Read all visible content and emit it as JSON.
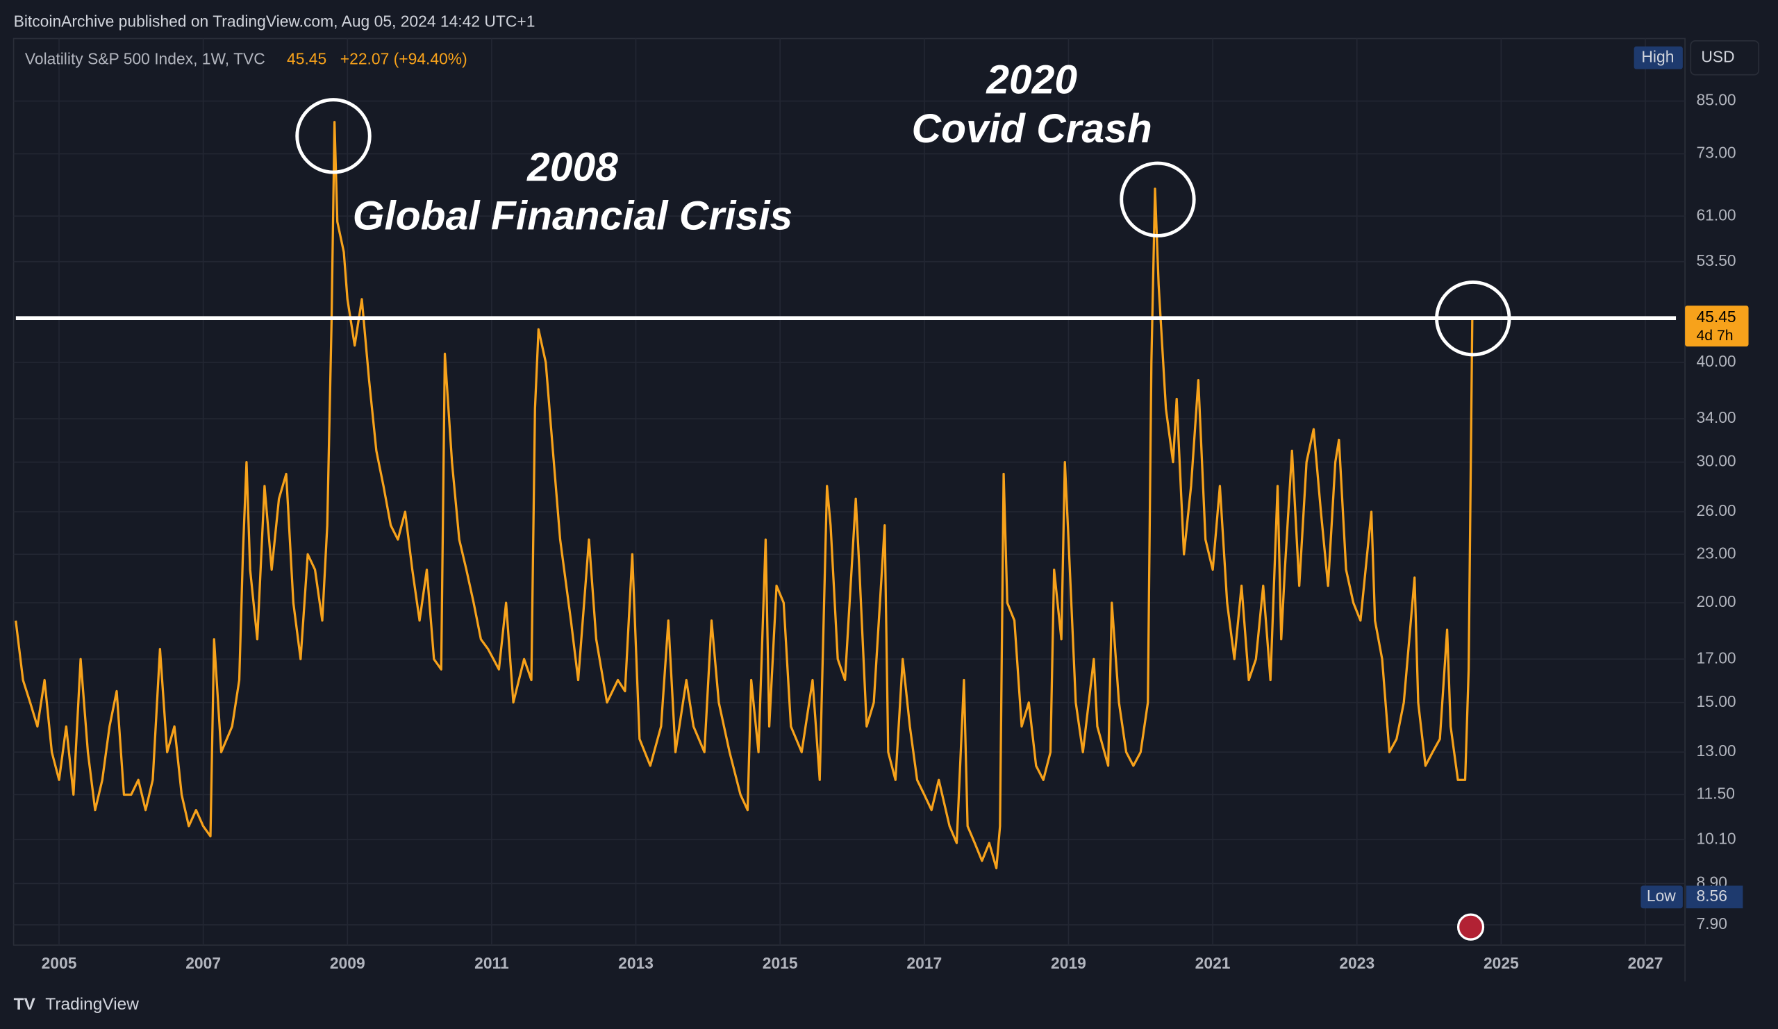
{
  "header": "BitcoinArchive published on TradingView.com, Aug 05, 2024 14:42 UTC+1",
  "footer": "TradingView",
  "chart_data": {
    "type": "line",
    "title": "Volatility S&P 500 Index, 1W, TVC",
    "last_value": 45.45,
    "change": "+22.07 (+94.40%)",
    "high_label": "High",
    "currency": "USD",
    "low_label": "Low",
    "low_value": 8.56,
    "countdown": "4d 7h",
    "log_scale": true,
    "grid": true,
    "annotations": [
      {
        "year": "2008",
        "text": "Global Financial Crisis"
      },
      {
        "year": "2020",
        "text": "Covid Crash"
      }
    ],
    "xlim": [
      2004.37,
      2027.55
    ],
    "xticks": [
      2005,
      2007,
      2009,
      2011,
      2013,
      2015,
      2017,
      2019,
      2021,
      2023,
      2025,
      2027
    ],
    "ylim": [
      7.45,
      101.8
    ],
    "yticks": [
      {
        "value": 7.9,
        "label": "7.90"
      },
      {
        "value": 8.9,
        "label": "8.90"
      },
      {
        "value": 10.1,
        "label": "10.10"
      },
      {
        "value": 11.5,
        "label": "11.50"
      },
      {
        "value": 13,
        "label": "13.00"
      },
      {
        "value": 15,
        "label": "15.00"
      },
      {
        "value": 17,
        "label": "17.00"
      },
      {
        "value": 20,
        "label": "20.00"
      },
      {
        "value": 23,
        "label": "23.00"
      },
      {
        "value": 26,
        "label": "26.00"
      },
      {
        "value": 30,
        "label": "30.00"
      },
      {
        "value": 34,
        "label": "34.00"
      },
      {
        "value": 40,
        "label": "40.00"
      },
      {
        "value": 53.5,
        "label": "53.50"
      },
      {
        "value": 61,
        "label": "61.00"
      },
      {
        "value": 73,
        "label": "73.00"
      },
      {
        "value": 85,
        "label": "85.00"
      }
    ],
    "x": [
      2004.4,
      2004.5,
      2004.6,
      2004.7,
      2004.8,
      2004.9,
      2005.0,
      2005.1,
      2005.2,
      2005.3,
      2005.4,
      2005.5,
      2005.6,
      2005.7,
      2005.8,
      2005.9,
      2006.0,
      2006.1,
      2006.2,
      2006.3,
      2006.4,
      2006.5,
      2006.6,
      2006.7,
      2006.8,
      2006.9,
      2007.0,
      2007.1,
      2007.15,
      2007.25,
      2007.4,
      2007.5,
      2007.55,
      2007.6,
      2007.65,
      2007.75,
      2007.85,
      2007.95,
      2008.05,
      2008.15,
      2008.25,
      2008.35,
      2008.45,
      2008.55,
      2008.65,
      2008.72,
      2008.78,
      2008.82,
      2008.86,
      2008.95,
      2009.0,
      2009.1,
      2009.2,
      2009.3,
      2009.4,
      2009.5,
      2009.6,
      2009.7,
      2009.8,
      2009.9,
      2010.0,
      2010.1,
      2010.2,
      2010.3,
      2010.35,
      2010.45,
      2010.55,
      2010.65,
      2010.75,
      2010.85,
      2010.95,
      2011.1,
      2011.2,
      2011.3,
      2011.45,
      2011.55,
      2011.6,
      2011.65,
      2011.75,
      2011.85,
      2011.95,
      2012.1,
      2012.2,
      2012.35,
      2012.45,
      2012.6,
      2012.75,
      2012.85,
      2012.95,
      2013.05,
      2013.2,
      2013.35,
      2013.45,
      2013.55,
      2013.7,
      2013.8,
      2013.95,
      2014.05,
      2014.15,
      2014.3,
      2014.45,
      2014.55,
      2014.6,
      2014.7,
      2014.8,
      2014.85,
      2014.95,
      2015.05,
      2015.15,
      2015.3,
      2015.45,
      2015.55,
      2015.65,
      2015.7,
      2015.8,
      2015.9,
      2016.05,
      2016.1,
      2016.2,
      2016.3,
      2016.45,
      2016.5,
      2016.6,
      2016.7,
      2016.8,
      2016.9,
      2017.0,
      2017.1,
      2017.2,
      2017.35,
      2017.45,
      2017.55,
      2017.6,
      2017.7,
      2017.8,
      2017.9,
      2018.0,
      2018.05,
      2018.1,
      2018.15,
      2018.25,
      2018.35,
      2018.45,
      2018.55,
      2018.65,
      2018.75,
      2018.8,
      2018.9,
      2018.95,
      2019.0,
      2019.1,
      2019.2,
      2019.35,
      2019.4,
      2019.55,
      2019.6,
      2019.7,
      2019.8,
      2019.9,
      2020.0,
      2020.1,
      2020.15,
      2020.2,
      2020.25,
      2020.35,
      2020.45,
      2020.5,
      2020.6,
      2020.7,
      2020.8,
      2020.9,
      2021.0,
      2021.1,
      2021.2,
      2021.3,
      2021.4,
      2021.5,
      2021.6,
      2021.7,
      2021.8,
      2021.9,
      2021.95,
      2022.0,
      2022.1,
      2022.2,
      2022.3,
      2022.4,
      2022.5,
      2022.6,
      2022.7,
      2022.75,
      2022.85,
      2022.95,
      2023.05,
      2023.2,
      2023.25,
      2023.35,
      2023.45,
      2023.55,
      2023.65,
      2023.8,
      2023.85,
      2023.95,
      2024.05,
      2024.15,
      2024.25,
      2024.3,
      2024.4,
      2024.5,
      2024.55,
      2024.6
    ],
    "series": [
      {
        "name": "Volatility S&P 500 Index",
        "color": "#f7a21b",
        "values": [
          19,
          16,
          15,
          14,
          16,
          13,
          12,
          14,
          11.5,
          17,
          13,
          11,
          12,
          14,
          15.5,
          11.5,
          11.5,
          12,
          11,
          12,
          17.5,
          13,
          14,
          11.5,
          10.5,
          11,
          10.5,
          10.2,
          18,
          13,
          14,
          16,
          23,
          30,
          22,
          18,
          28,
          22,
          27,
          29,
          20,
          17,
          23,
          22,
          19,
          25,
          45,
          80,
          60,
          55,
          48,
          42,
          48,
          38,
          31,
          28,
          25,
          24,
          26,
          22,
          19,
          22,
          17,
          16.5,
          41,
          30,
          24,
          22,
          20,
          18,
          17.5,
          16.5,
          20,
          15,
          17,
          16,
          35,
          44,
          40,
          31,
          24,
          19,
          16,
          24,
          18,
          15,
          16,
          15.5,
          23,
          13.5,
          12.5,
          14,
          19,
          13,
          16,
          14,
          13,
          19,
          15,
          13,
          11.5,
          11,
          16,
          13,
          24,
          14,
          21,
          20,
          14,
          13,
          16,
          12,
          28,
          25,
          17,
          16,
          27,
          22,
          14,
          15,
          25,
          13,
          12,
          17,
          14,
          12,
          11.5,
          11,
          12,
          10.5,
          10,
          16,
          10.5,
          10,
          9.5,
          10,
          9.3,
          10.5,
          29,
          20,
          19,
          14,
          15,
          12.5,
          12,
          13,
          22,
          18,
          30,
          24,
          15,
          13,
          17,
          14,
          12.5,
          20,
          15,
          13,
          12.5,
          13,
          15,
          40,
          66,
          50,
          35,
          30,
          36,
          23,
          28,
          38,
          24,
          22,
          28,
          20,
          17,
          21,
          16,
          17,
          21,
          16,
          28,
          18,
          22,
          31,
          21,
          30,
          33,
          26,
          21,
          30,
          32,
          22,
          20,
          19,
          26,
          19,
          17,
          13,
          13.5,
          15,
          21.5,
          15,
          12.5,
          13,
          13.5,
          18.5,
          14,
          12,
          12,
          16.5,
          45.45
        ]
      }
    ]
  }
}
